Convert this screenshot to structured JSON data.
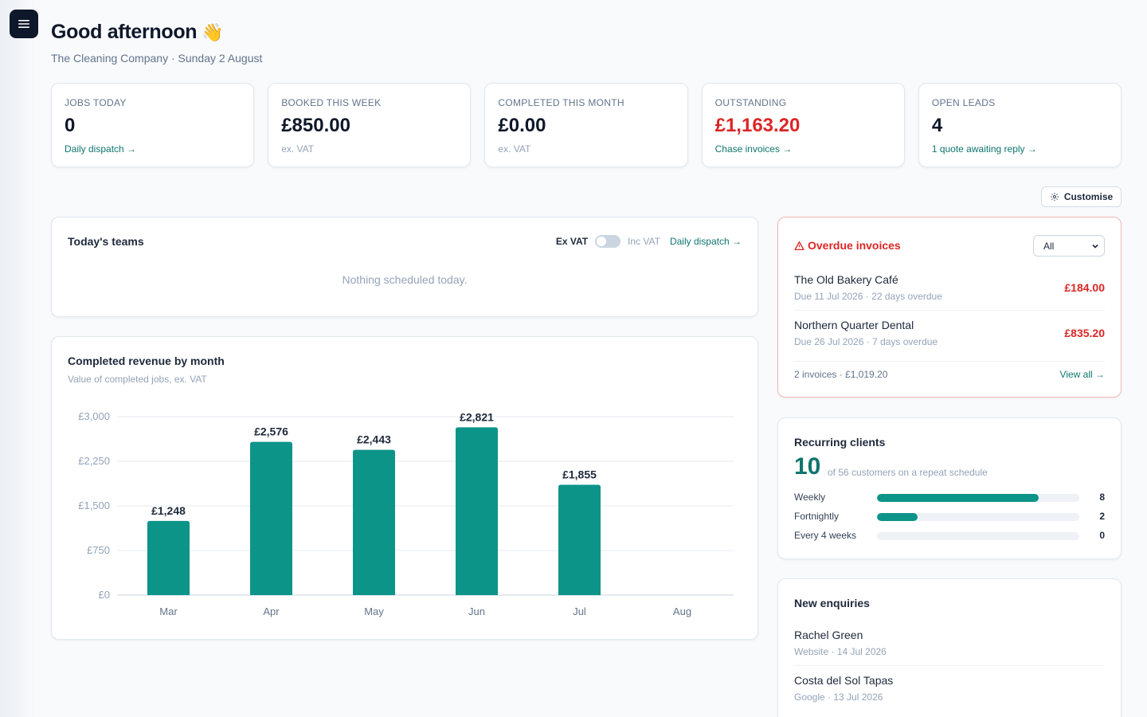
{
  "header": {
    "greeting": "Good afternoon",
    "emoji": "👋",
    "subtitle": "The Cleaning Company · Sunday 2 August"
  },
  "kpis": [
    {
      "label": "JOBS TODAY",
      "value": "0",
      "link": "Daily dispatch →"
    },
    {
      "label": "BOOKED THIS WEEK",
      "value": "£850.00",
      "note": "ex. VAT"
    },
    {
      "label": "COMPLETED THIS MONTH",
      "value": "£0.00",
      "note": "ex. VAT"
    },
    {
      "label": "OUTSTANDING",
      "value": "£1,163.20",
      "link": "Chase invoices →",
      "value_color": "#dc2626"
    },
    {
      "label": "OPEN LEADS",
      "value": "4",
      "link": "1 quote awaiting reply →"
    }
  ],
  "customise_label": "Customise",
  "teams": {
    "title": "Today's teams",
    "ex_vat": "Ex VAT",
    "inc_vat": "Inc VAT",
    "toggle_on": false,
    "dispatch_link": "Daily dispatch →",
    "empty_text": "Nothing scheduled today."
  },
  "revenue": {
    "title": "Completed revenue by month",
    "subtitle": "Value of completed jobs, ex. VAT"
  },
  "chart_data": {
    "type": "bar",
    "title": "Completed revenue by month",
    "subtitle": "Value of completed jobs, ex. VAT",
    "categories": [
      "Mar",
      "Apr",
      "May",
      "Jun",
      "Jul",
      "Aug"
    ],
    "values": [
      1248,
      2576,
      2443,
      2821,
      1855,
      0
    ],
    "data_labels": [
      "£1,248",
      "£2,576",
      "£2,443",
      "£2,821",
      "£1,855",
      ""
    ],
    "yticks": [
      "£0",
      "£750",
      "£1,500",
      "£2,250",
      "£3,000"
    ],
    "ylim": [
      0,
      3000
    ],
    "grid": true,
    "bar_color": "#0d9488"
  },
  "overdue": {
    "title": "Overdue invoices",
    "filter_value": "All",
    "invoices": [
      {
        "name": "The Old Bakery Café",
        "meta": "Due 11 Jul 2026 · 22 days overdue",
        "amount": "£184.00"
      },
      {
        "name": "Northern Quarter Dental",
        "meta": "Due 26 Jul 2026 · 7 days overdue",
        "amount": "£835.20"
      }
    ],
    "summary": "2 invoices · £1,019.20",
    "view_all": "View all →"
  },
  "recurring": {
    "title": "Recurring clients",
    "count": "10",
    "subtitle": "of 56 customers on a repeat schedule",
    "frequencies": [
      {
        "label": "Weekly",
        "count": 8,
        "fraction": 0.8
      },
      {
        "label": "Fortnightly",
        "count": 2,
        "fraction": 0.2
      },
      {
        "label": "Every 4 weeks",
        "count": 0,
        "fraction": 0
      }
    ]
  },
  "enquiries": {
    "title": "New enquiries",
    "items": [
      {
        "name": "Rachel Green",
        "meta": "Website · 14 Jul 2026"
      },
      {
        "name": "Costa del Sol Tapas",
        "meta": "Google · 13 Jul 2026"
      }
    ]
  },
  "icons": {
    "menu": "menu-icon",
    "settings": "gear-icon",
    "warning": "warning-triangle-icon",
    "chevron": "chevron-down-icon"
  }
}
